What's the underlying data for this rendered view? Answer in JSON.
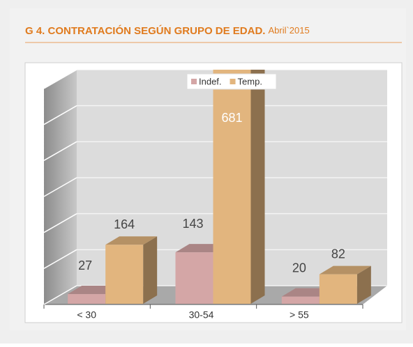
{
  "chart_data": {
    "type": "bar3d",
    "title": "G 4. CONTRATACIÓN  SEGÚN GRUPO DE EDAD.",
    "subtitle": "Abril`2015",
    "categories": [
      "< 30",
      "30-54",
      "> 55"
    ],
    "series": [
      {
        "name": "Indef.",
        "color": "#d4a6a6",
        "values": [
          27,
          143,
          20
        ]
      },
      {
        "name": "Temp.",
        "color": "#e2b57e",
        "values": [
          164,
          681,
          82
        ]
      }
    ],
    "ylim": [
      0,
      600
    ],
    "yticks": [
      0,
      100,
      200,
      300,
      400,
      500,
      600
    ],
    "grid": true,
    "legend": "top"
  }
}
